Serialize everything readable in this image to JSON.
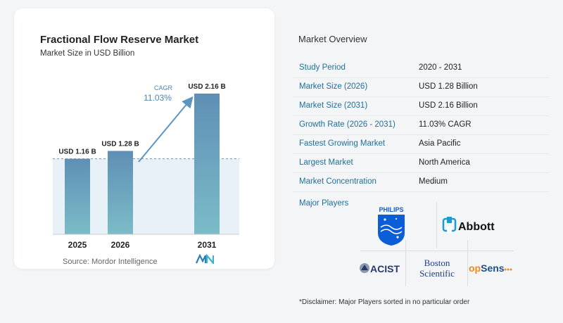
{
  "chart_data": {
    "type": "bar",
    "title": "Fractional Flow Reserve Market",
    "subtitle": "Market Size in USD Billion",
    "categories": [
      "2025",
      "2026",
      "2031"
    ],
    "values": [
      1.16,
      1.28,
      2.16
    ],
    "data_labels": [
      "USD 1.16 B",
      "USD 1.28 B",
      "USD 2.16 B"
    ],
    "cagr_label": "CAGR",
    "cagr_value": "11.03%",
    "ylim": [
      0,
      2.16
    ],
    "grid": false,
    "colors": {
      "bar": "#5f8fb5",
      "bar_bottom": "#7bbcc8",
      "shade": "#e8f1f7",
      "dashed": "#6c97b3",
      "arrow": "#5e95c0",
      "cagr": "#4a86b8"
    }
  },
  "source": "Source:  Mordor Intelligence",
  "overview": {
    "title": "Market Overview",
    "rows": [
      {
        "label": "Study Period",
        "value": "2020 - 2031"
      },
      {
        "label": "Market Size (2026)",
        "value": "USD 1.28 Billion"
      },
      {
        "label": "Market Size (2031)",
        "value": "USD 2.16 Billion"
      },
      {
        "label": "Growth Rate (2026 - 2031)",
        "value": "11.03% CAGR"
      },
      {
        "label": "Fastest Growing Market",
        "value": "Asia Pacific"
      },
      {
        "label": "Largest Market",
        "value": "North America"
      },
      {
        "label": "Market Concentration",
        "value": "Medium"
      }
    ]
  },
  "players": {
    "label": "Major Players",
    "names": {
      "philips": "PHILIPS",
      "abbott": "Abbott",
      "acist": "ACIST",
      "boston_1": "Boston",
      "boston_2": "Scientific",
      "opsens_op": "op",
      "opsens_sens": "Sens"
    },
    "colors": {
      "philips": "#0b5ed7",
      "abbott": "#1c9ad6",
      "acist": "#2b3a6b",
      "boston": "#1e3c8c",
      "opsens_orange": "#f28a1e",
      "opsens_blue": "#1e4f8c"
    }
  },
  "disclaimer": "*Disclaimer: Major Players sorted in no particular order"
}
